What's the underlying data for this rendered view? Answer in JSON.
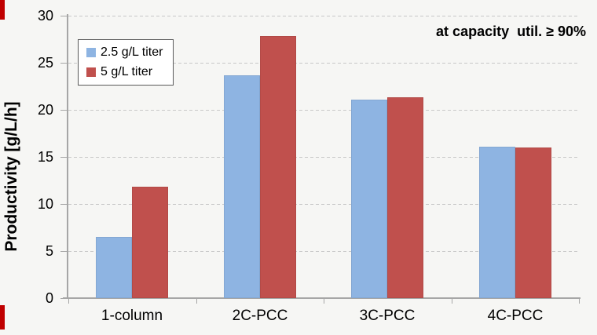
{
  "colors": {
    "background": "#F6F6F4",
    "series_blue": "#8EB4E2",
    "series_red": "#C0504D",
    "gridline": "#C8C8C8",
    "axis": "#A6A6A6",
    "text": "#000000",
    "legend_border": "#595959",
    "legend_background": "#FFFFFF",
    "edge_mark_red": "#C00000"
  },
  "legend": {
    "items": [
      {
        "label": "2.5 g/L titer",
        "color": "#8EB4E2"
      },
      {
        "label": "5 g/L titer",
        "color": "#C0504D"
      }
    ]
  },
  "chart_data": {
    "type": "bar",
    "title": "",
    "categories": [
      "1-column",
      "2C-PCC",
      "3C-PCC",
      "4C-PCC"
    ],
    "series": [
      {
        "name": "2.5 g/L titer",
        "color": "#8EB4E2",
        "values": [
          6.5,
          23.7,
          21.1,
          16.1
        ]
      },
      {
        "name": "5 g/L titer",
        "color": "#C0504D",
        "values": [
          11.8,
          27.8,
          21.3,
          16.0
        ]
      }
    ],
    "xlabel": "",
    "ylabel": "Productivity [g/L/h]",
    "ylim": [
      0,
      30
    ],
    "yticks": [
      0,
      5,
      10,
      15,
      20,
      25,
      30
    ],
    "grid": "horizontal-dashed",
    "legend_position": "upper-left-inside",
    "annotation": "at capacity  util. ≥ 90%"
  }
}
